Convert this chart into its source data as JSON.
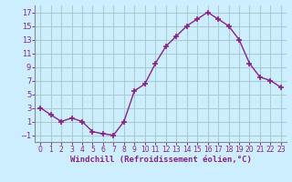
{
  "x": [
    0,
    1,
    2,
    3,
    4,
    5,
    6,
    7,
    8,
    9,
    10,
    11,
    12,
    13,
    14,
    15,
    16,
    17,
    18,
    19,
    20,
    21,
    22,
    23
  ],
  "y": [
    3,
    2,
    1,
    1.5,
    1,
    -0.5,
    -0.8,
    -1,
    1,
    5.5,
    6.5,
    9.5,
    12,
    13.5,
    15,
    16,
    17,
    16,
    15,
    13,
    9.5,
    7.5,
    7,
    6
  ],
  "line_color": "#882288",
  "marker": "+",
  "bg_color": "#cceeff",
  "grid_color": "#aacccc",
  "xlabel": "Windchill (Refroidissement éolien,°C)",
  "xlabel_color": "#882288",
  "tick_color": "#882288",
  "axis_color": "#888888",
  "ylim": [
    -2,
    18
  ],
  "xlim": [
    -0.5,
    23.5
  ],
  "yticks": [
    -1,
    1,
    3,
    5,
    7,
    9,
    11,
    13,
    15,
    17
  ],
  "xticks": [
    0,
    1,
    2,
    3,
    4,
    5,
    6,
    7,
    8,
    9,
    10,
    11,
    12,
    13,
    14,
    15,
    16,
    17,
    18,
    19,
    20,
    21,
    22,
    23
  ],
  "tick_fontsize": 6,
  "xlabel_fontsize": 6.5
}
